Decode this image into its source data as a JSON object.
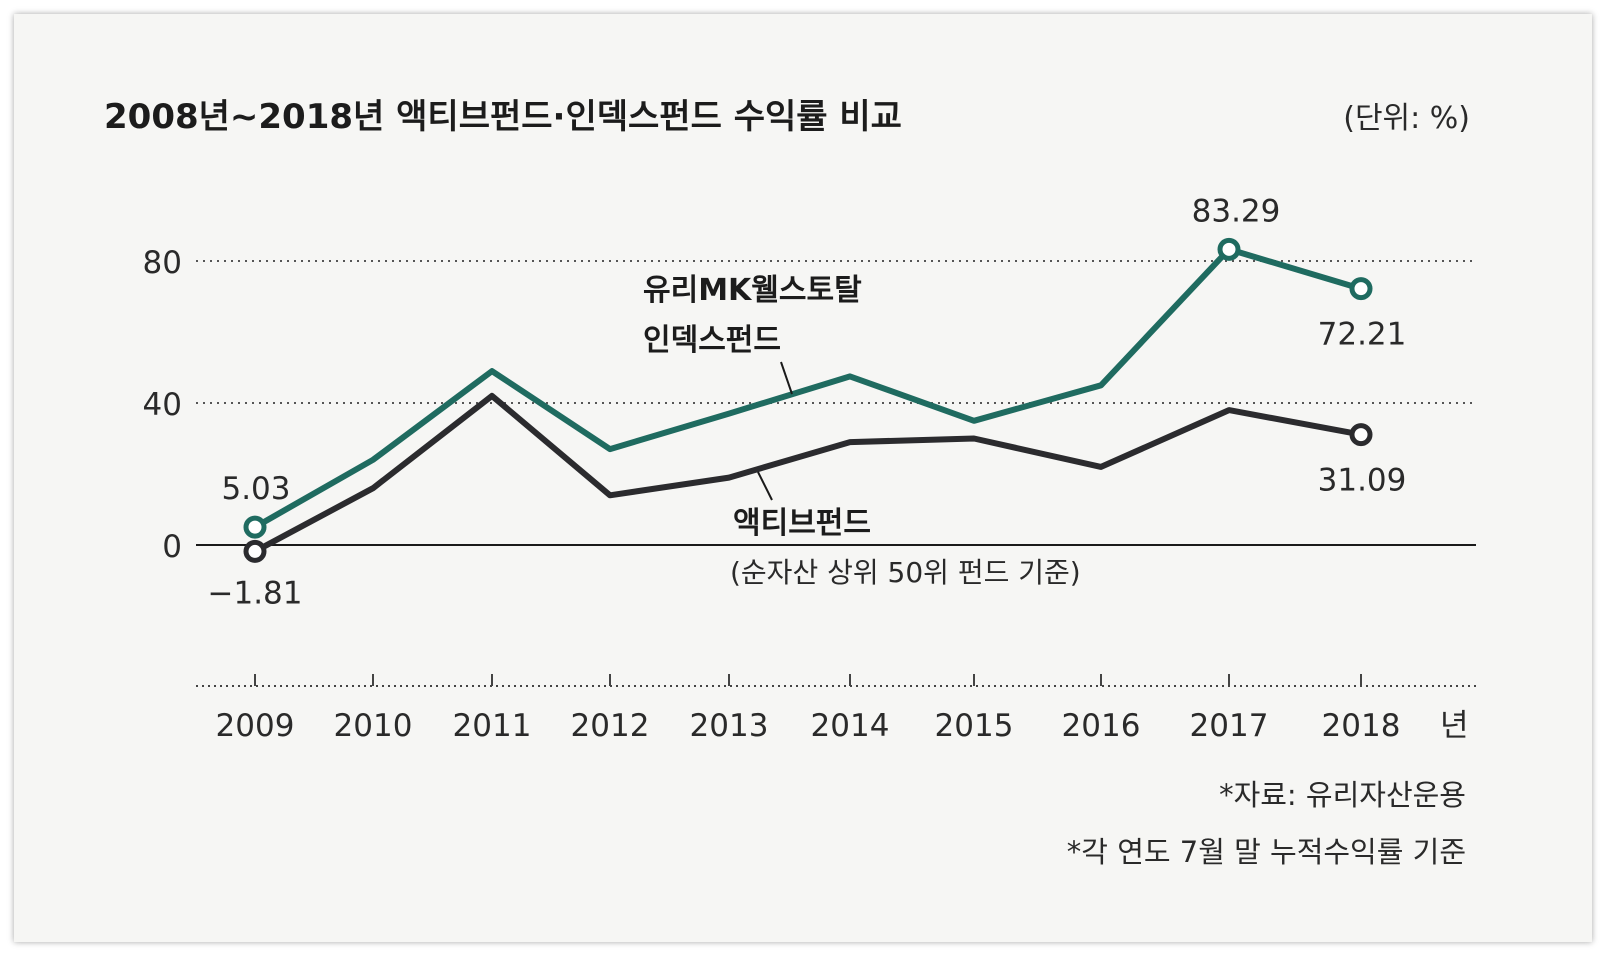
{
  "chart_data": {
    "type": "line",
    "title": "2008년~2018년 액티브펀드·인덱스펀드 수익률 비교",
    "unit": "(단위: %)",
    "x": [
      "2009",
      "2010",
      "2011",
      "2012",
      "2013",
      "2014",
      "2015",
      "2016",
      "2017",
      "2018"
    ],
    "x_suffix": "년",
    "y_ticks": [
      "80",
      "40",
      "0"
    ],
    "ylim": [
      -40,
      100
    ],
    "series": [
      {
        "name": "유리MK웰스토탈 인덱스펀드",
        "name_lines": [
          "유리MK웰스토탈",
          "인덱스펀드"
        ],
        "color": "#1f6b60",
        "values": [
          5.03,
          24,
          49,
          27,
          37,
          47.5,
          35,
          45,
          83.29,
          72.21
        ],
        "data_labels": {
          "first": "5.03",
          "peak": "83.29",
          "last": "72.21"
        }
      },
      {
        "name": "액티브펀드 (순자산 상위 50위 펀드 기준)",
        "name_lines": [
          "액티브펀드",
          "(순자산 상위 50위 펀드 기준)"
        ],
        "color": "#2b2b2e",
        "values": [
          -1.81,
          16,
          42,
          14,
          19,
          29,
          30,
          22,
          38,
          31.09
        ],
        "data_labels": {
          "first": "−1.81",
          "last": "31.09"
        }
      }
    ],
    "notes": [
      "*자료: 유리자산운용",
      "*각 연도 7월 말 누적수익률 기준"
    ]
  }
}
